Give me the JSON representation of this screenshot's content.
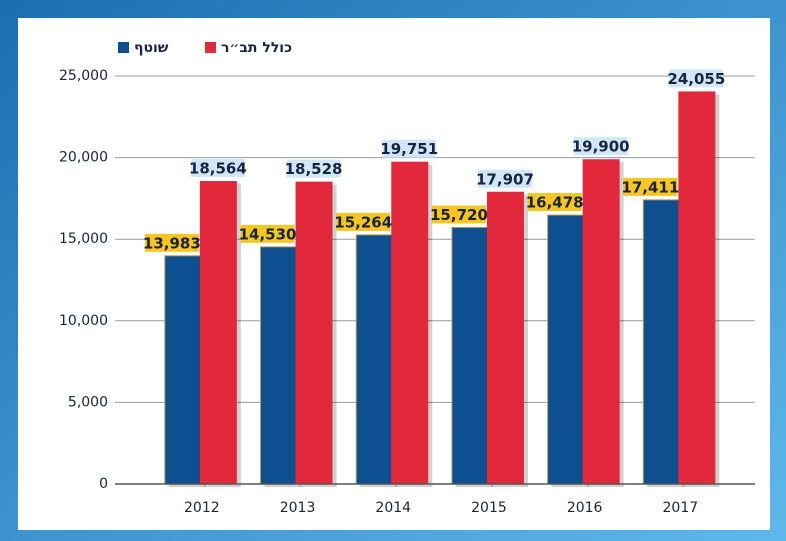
{
  "chart_data": {
    "type": "bar",
    "categories": [
      "2012",
      "2013",
      "2014",
      "2015",
      "2016",
      "2017"
    ],
    "series": [
      {
        "name": "שוטף",
        "color": "#0e4f8f",
        "values": [
          13983,
          14530,
          15264,
          15720,
          16478,
          17411
        ],
        "value_labels": [
          "13,983",
          "14,530",
          "15,264",
          "15,720",
          "16,478",
          "17,411"
        ]
      },
      {
        "name": "כולל תב״ר",
        "color": "#e2283b",
        "values": [
          18564,
          18528,
          19751,
          17907,
          19900,
          24055
        ],
        "value_labels": [
          "18,564",
          "18,528",
          "19,751",
          "17,907",
          "19,900",
          "24,055"
        ]
      }
    ],
    "ylim": [
      0,
      25000
    ],
    "yticks": [
      0,
      {
        "value": 5000,
        "label": "5,000"
      },
      {
        "value": 10000,
        "label": "10,000"
      },
      {
        "value": 15000,
        "label": "15,000"
      },
      {
        "value": 20000,
        "label": "20,000"
      },
      {
        "value": 25000,
        "label": "25,000"
      }
    ],
    "grid": true
  }
}
